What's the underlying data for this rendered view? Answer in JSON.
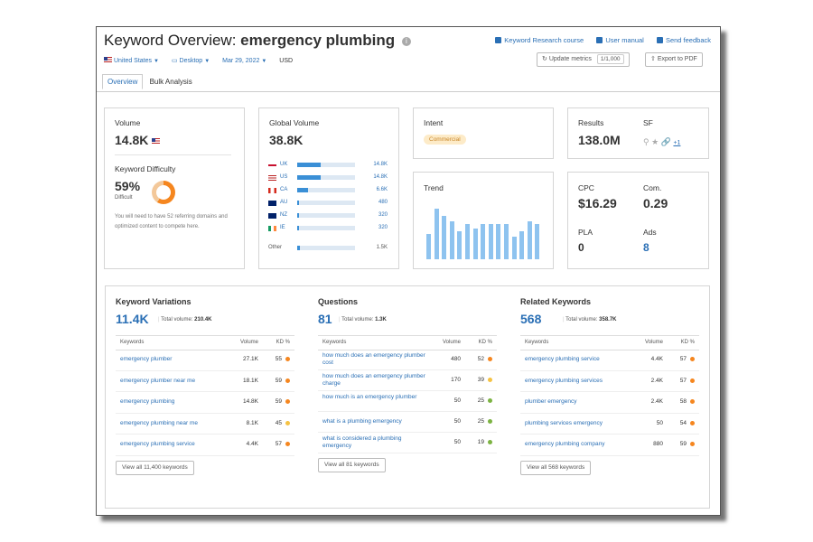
{
  "header": {
    "title_prefix": "Keyword Overview:",
    "keyword": "emergency plumbing",
    "links": [
      "Keyword Research course",
      "User manual",
      "Send feedback"
    ]
  },
  "filters": {
    "country": "United States",
    "device": "Desktop",
    "date": "Mar 29, 2022",
    "currency": "USD"
  },
  "buttons": {
    "update_metrics": "Update metrics",
    "update_count": "1/1,000",
    "export": "Export to PDF"
  },
  "tabs": [
    "Overview",
    "Bulk Analysis"
  ],
  "volume": {
    "label": "Volume",
    "value": "14.8K"
  },
  "difficulty": {
    "label": "Keyword Difficulty",
    "value": "59%",
    "level": "Difficult",
    "percent": 59,
    "note": "You will need to have 52 referring domains and optimized content to compete here."
  },
  "global_volume": {
    "label": "Global Volume",
    "value": "38.8K",
    "rows": [
      {
        "code": "UK",
        "value": "14.8K",
        "fill": 0.4
      },
      {
        "code": "US",
        "value": "14.8K",
        "fill": 0.4
      },
      {
        "code": "CA",
        "value": "6.6K",
        "fill": 0.18
      },
      {
        "code": "AU",
        "value": "480",
        "fill": 0.02
      },
      {
        "code": "NZ",
        "value": "320",
        "fill": 0.015
      },
      {
        "code": "IE",
        "value": "320",
        "fill": 0.015
      }
    ],
    "other_label": "Other",
    "other_value": "1.5K",
    "other_fill": 0.04
  },
  "intent": {
    "label": "Intent",
    "badge": "Commercial"
  },
  "trend": {
    "label": "Trend",
    "values": [
      0.5,
      1.0,
      0.85,
      0.75,
      0.55,
      0.7,
      0.6,
      0.7,
      0.7,
      0.7,
      0.7,
      0.45,
      0.55,
      0.75,
      0.7
    ]
  },
  "results": {
    "label": "Results",
    "value": "138.0M",
    "sf_label": "SF",
    "sf_more": "+1"
  },
  "cpc": {
    "cpc_label": "CPC",
    "cpc_value": "$16.29",
    "com_label": "Com.",
    "com_value": "0.29",
    "pla_label": "PLA",
    "pla_value": "0",
    "ads_label": "Ads",
    "ads_value": "8"
  },
  "sections": [
    {
      "title": "Keyword Variations",
      "count": "11.4K",
      "total_label": "Total volume:",
      "total_value": "210.4K",
      "col_keyword": "Keywords",
      "col_volume": "Volume",
      "col_kd": "KD %",
      "rows": [
        {
          "keyword": "emergency plumber",
          "volume": "27.1K",
          "kd": "55",
          "color": "#f5861f"
        },
        {
          "keyword": "emergency plumber near me",
          "volume": "18.1K",
          "kd": "59",
          "color": "#f5861f"
        },
        {
          "keyword": "emergency plumbing",
          "volume": "14.8K",
          "kd": "59",
          "color": "#f5861f"
        },
        {
          "keyword": "emergency plumbing near me",
          "volume": "8.1K",
          "kd": "45",
          "color": "#f5c243"
        },
        {
          "keyword": "emergency plumbing service",
          "volume": "4.4K",
          "kd": "57",
          "color": "#f5861f"
        }
      ],
      "view_all": "View all 11,400 keywords"
    },
    {
      "title": "Questions",
      "count": "81",
      "total_label": "Total volume:",
      "total_value": "1.3K",
      "col_keyword": "Keywords",
      "col_volume": "Volume",
      "col_kd": "KD %",
      "rows": [
        {
          "keyword": "how much does an emergency plumber cost",
          "volume": "480",
          "kd": "52",
          "color": "#f5861f"
        },
        {
          "keyword": "how much does an emergency plumber charge",
          "volume": "170",
          "kd": "39",
          "color": "#f5c243"
        },
        {
          "keyword": "how much is an emergency plumber",
          "volume": "50",
          "kd": "25",
          "color": "#7cb342"
        },
        {
          "keyword": "what is a plumbing emergency",
          "volume": "50",
          "kd": "25",
          "color": "#7cb342"
        },
        {
          "keyword": "what is considered a plumbing emergency",
          "volume": "50",
          "kd": "19",
          "color": "#7cb342"
        }
      ],
      "view_all": "View all 81 keywords"
    },
    {
      "title": "Related Keywords",
      "count": "568",
      "total_label": "Total volume:",
      "total_value": "358.7K",
      "col_keyword": "Keywords",
      "col_volume": "Volume",
      "col_kd": "KD %",
      "rows": [
        {
          "keyword": "emergency plumbing service",
          "volume": "4.4K",
          "kd": "57",
          "color": "#f5861f"
        },
        {
          "keyword": "emergency plumbing services",
          "volume": "2.4K",
          "kd": "57",
          "color": "#f5861f"
        },
        {
          "keyword": "plumber emergency",
          "volume": "2.4K",
          "kd": "58",
          "color": "#f5861f"
        },
        {
          "keyword": "plumbing services emergency",
          "volume": "50",
          "kd": "54",
          "color": "#f5861f"
        },
        {
          "keyword": "emergency plumbing company",
          "volume": "880",
          "kd": "59",
          "color": "#f5861f"
        }
      ],
      "view_all": "View all 568 keywords"
    }
  ],
  "colors": {
    "accent": "#2a6fb5",
    "bar": "#3a8fd6",
    "trend": "#8ec3ef",
    "donut": "#f5861f"
  }
}
